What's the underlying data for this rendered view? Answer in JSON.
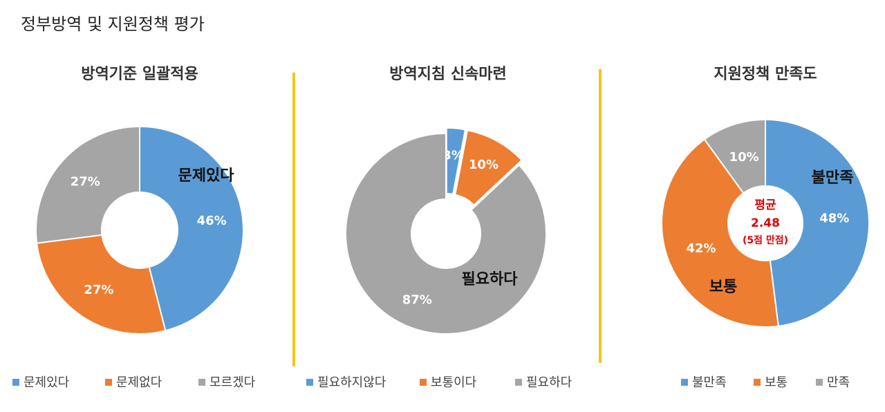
{
  "title": "정부방역 및 지원정책 평가",
  "chart_data": [
    {
      "type": "donut",
      "title": "방역기준 일괄적용",
      "categories": [
        "문제있다",
        "문제없다",
        "모르겠다"
      ],
      "values": [
        46,
        27,
        27
      ],
      "value_labels": [
        "46%",
        "27%",
        "27%"
      ],
      "colors": [
        "#5b9bd5",
        "#ed7d31",
        "#a5a5a5"
      ],
      "annotations": [
        "문제있다"
      ]
    },
    {
      "type": "donut",
      "title": "방역지침 신속마련",
      "categories": [
        "필요하지않다",
        "보통이다",
        "필요하다"
      ],
      "values": [
        3,
        10,
        87
      ],
      "value_labels": [
        "3%",
        "10%",
        "87%"
      ],
      "colors": [
        "#5b9bd5",
        "#ed7d31",
        "#a5a5a5"
      ],
      "annotations": [
        "필요하다"
      ]
    },
    {
      "type": "pie",
      "title": "지원정책 만족도",
      "categories": [
        "불만족",
        "보통",
        "만족"
      ],
      "values": [
        48,
        42,
        10
      ],
      "value_labels": [
        "48%",
        "42%",
        "10%"
      ],
      "colors": [
        "#5b9bd5",
        "#ed7d31",
        "#a5a5a5"
      ],
      "annotations": [
        "불만족",
        "보통"
      ],
      "center_text": {
        "label": "평균",
        "value": 2.48,
        "note": "(5점 만점)"
      }
    }
  ]
}
